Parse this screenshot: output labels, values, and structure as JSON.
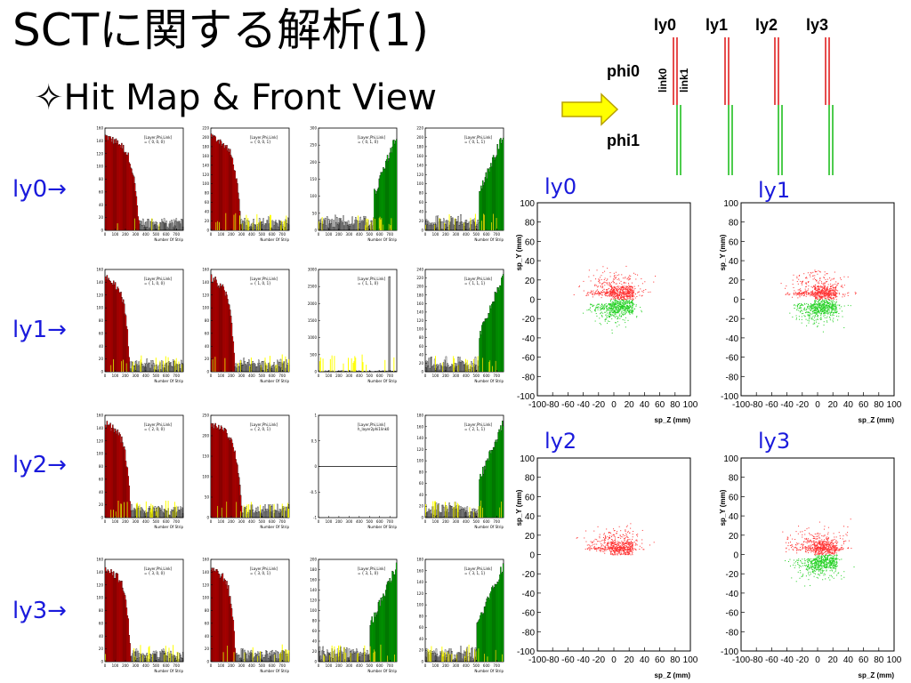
{
  "slide": {
    "title": "SCTに関する解析(1)",
    "subtitle": "✧Hit Map & Front View",
    "row_labels": [
      "ly0→",
      "ly1→",
      "ly2→",
      "ly3→"
    ]
  },
  "diagram": {
    "layer_labels": [
      "ly0",
      "ly1",
      "ly2",
      "ly3"
    ],
    "phi_labels": [
      "phi0",
      "phi1"
    ],
    "link_labels": [
      "link0",
      "link1"
    ],
    "colors": {
      "link0": "#e02020",
      "link1": "#20c020",
      "arrow": "#ffff00"
    }
  },
  "chart_data": [
    {
      "type": "bar",
      "panel": "hit-map-grid",
      "xlabel": "Number Of Strip",
      "xlim": [
        0,
        768
      ],
      "xticks": [
        0,
        100,
        200,
        300,
        400,
        500,
        600,
        700
      ],
      "legend_entries": [
        "[Layer,Phi,Link]"
      ],
      "colors": {
        "link0_fill": "#ff0000",
        "link1_fill": "#00dd00",
        "outline": "#000000",
        "noise": "#ffff00"
      },
      "histograms": [
        {
          "layer": 0,
          "phi": 0,
          "link": 0,
          "label": "= { 0, 0, 0}",
          "ylim": [
            0,
            160
          ],
          "yticks": [
            0,
            20,
            40,
            60,
            80,
            100,
            120,
            140,
            160
          ],
          "shape": "falling",
          "edge": 330
        },
        {
          "layer": 0,
          "phi": 0,
          "link": 1,
          "label": "= { 0, 0, 1}",
          "ylim": [
            0,
            220
          ],
          "yticks": [
            0,
            20,
            40,
            60,
            80,
            100,
            120,
            140,
            160,
            180,
            200,
            220
          ],
          "shape": "falling",
          "edge": 290
        },
        {
          "layer": 0,
          "phi": 1,
          "link": 0,
          "label": "= { 0, 1, 0}",
          "ylim": [
            0,
            300
          ],
          "yticks": [
            0,
            50,
            100,
            150,
            200,
            250,
            300
          ],
          "shape": "rising",
          "edge": 540
        },
        {
          "layer": 0,
          "phi": 1,
          "link": 1,
          "label": "= { 0, 1, 1}",
          "ylim": [
            0,
            220
          ],
          "yticks": [
            0,
            20,
            40,
            60,
            80,
            100,
            120,
            140,
            160,
            180,
            200,
            220
          ],
          "shape": "rising",
          "edge": 520
        },
        {
          "layer": 1,
          "phi": 0,
          "link": 0,
          "label": "= { 1, 0, 0}",
          "ylim": [
            0,
            160
          ],
          "yticks": [
            0,
            20,
            40,
            60,
            80,
            100,
            120,
            140,
            160
          ],
          "shape": "falling",
          "edge": 240
        },
        {
          "layer": 1,
          "phi": 0,
          "link": 1,
          "label": "= { 1, 0, 1}",
          "ylim": [
            0,
            160
          ],
          "yticks": [
            0,
            20,
            40,
            60,
            80,
            100,
            120,
            140,
            160
          ],
          "shape": "falling",
          "edge": 230
        },
        {
          "layer": 1,
          "phi": 1,
          "link": 0,
          "label": "= { 1, 1, 0}",
          "ylim": [
            0,
            3000
          ],
          "yticks": [
            0,
            500,
            1000,
            1500,
            2000,
            2500,
            3000
          ],
          "shape": "spike",
          "edge": 690
        },
        {
          "layer": 1,
          "phi": 1,
          "link": 1,
          "label": "= { 1, 1, 1}",
          "ylim": [
            0,
            240
          ],
          "yticks": [
            0,
            20,
            40,
            60,
            80,
            100,
            120,
            140,
            160,
            180,
            200,
            220,
            240
          ],
          "shape": "rising",
          "edge": 520
        },
        {
          "layer": 2,
          "phi": 0,
          "link": 0,
          "label": "= { 2, 0, 0}",
          "ylim": [
            0,
            160
          ],
          "yticks": [
            0,
            20,
            40,
            60,
            80,
            100,
            120,
            140,
            160
          ],
          "shape": "falling",
          "edge": 250
        },
        {
          "layer": 2,
          "phi": 0,
          "link": 1,
          "label": "= { 2, 0, 1}",
          "ylim": [
            0,
            250
          ],
          "yticks": [
            0,
            50,
            100,
            150,
            200,
            250
          ],
          "shape": "falling",
          "edge": 300
        },
        {
          "layer": 2,
          "phi": 1,
          "link": 0,
          "label": "h_layer2phi1link0",
          "ylim": [
            -1,
            1
          ],
          "yticks": [
            -1,
            -0.5,
            0,
            0.5,
            1
          ],
          "shape": "empty",
          "edge": 0
        },
        {
          "layer": 2,
          "phi": 1,
          "link": 1,
          "label": "= { 2, 1, 1}",
          "ylim": [
            0,
            180
          ],
          "yticks": [
            0,
            20,
            40,
            60,
            80,
            100,
            120,
            140,
            160,
            180
          ],
          "shape": "rising",
          "edge": 520
        },
        {
          "layer": 3,
          "phi": 0,
          "link": 0,
          "label": "= { 3, 0, 0}",
          "ylim": [
            0,
            160
          ],
          "yticks": [
            0,
            20,
            40,
            60,
            80,
            100,
            120,
            140,
            160
          ],
          "shape": "falling",
          "edge": 250
        },
        {
          "layer": 3,
          "phi": 0,
          "link": 1,
          "label": "= { 3, 0, 1}",
          "ylim": [
            0,
            160
          ],
          "yticks": [
            0,
            20,
            40,
            60,
            80,
            100,
            120,
            140,
            160
          ],
          "shape": "falling",
          "edge": 240
        },
        {
          "layer": 3,
          "phi": 1,
          "link": 0,
          "label": "= { 3, 1, 0}",
          "ylim": [
            0,
            200
          ],
          "yticks": [
            0,
            20,
            40,
            60,
            80,
            100,
            120,
            140,
            160,
            180,
            200
          ],
          "shape": "rising",
          "edge": 500
        },
        {
          "layer": 3,
          "phi": 1,
          "link": 1,
          "label": "= { 3, 1, 1}",
          "ylim": [
            0,
            180
          ],
          "yticks": [
            0,
            20,
            40,
            60,
            80,
            100,
            120,
            140,
            160,
            180
          ],
          "shape": "rising",
          "edge": 500
        }
      ]
    },
    {
      "type": "scatter",
      "panel": "front-view",
      "xlabel": "sp_Z (mm)",
      "ylabel": "sp_Y (mm)",
      "xlim": [
        -100,
        100
      ],
      "ylim": [
        -100,
        100
      ],
      "xticks": [
        -100,
        -80,
        -60,
        -40,
        -20,
        0,
        20,
        40,
        60,
        80,
        100
      ],
      "yticks": [
        -100,
        -80,
        -60,
        -40,
        -20,
        0,
        20,
        40,
        60,
        80,
        100
      ],
      "colors": {
        "phi0": "#ff3030",
        "phi1": "#20d020"
      },
      "plots": [
        {
          "label": "ly0",
          "has_phi1": true
        },
        {
          "label": "ly1",
          "has_phi1": true
        },
        {
          "label": "ly2",
          "has_phi1": false
        },
        {
          "label": "ly3",
          "has_phi1": true
        }
      ]
    }
  ]
}
